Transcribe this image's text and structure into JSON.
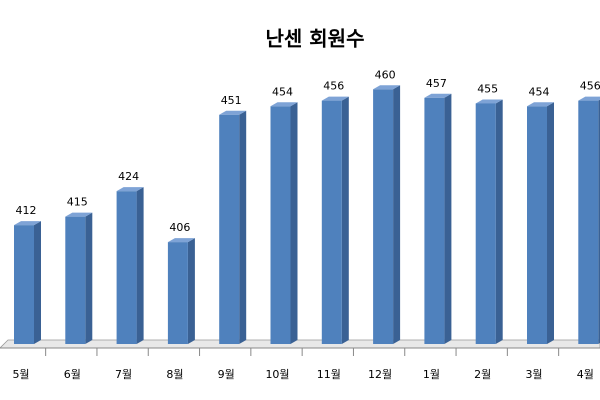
{
  "chart_data": {
    "type": "bar3d",
    "title": "난센 회원수",
    "categories": [
      "5월",
      "6월",
      "7월",
      "8월",
      "9월",
      "10월",
      "11월",
      "12월",
      "1월",
      "2월",
      "3월",
      "4월"
    ],
    "values": [
      412,
      415,
      424,
      406,
      451,
      454,
      456,
      460,
      457,
      455,
      454,
      456
    ],
    "color": "#4f81bd",
    "ylim": [
      370,
      470
    ]
  }
}
